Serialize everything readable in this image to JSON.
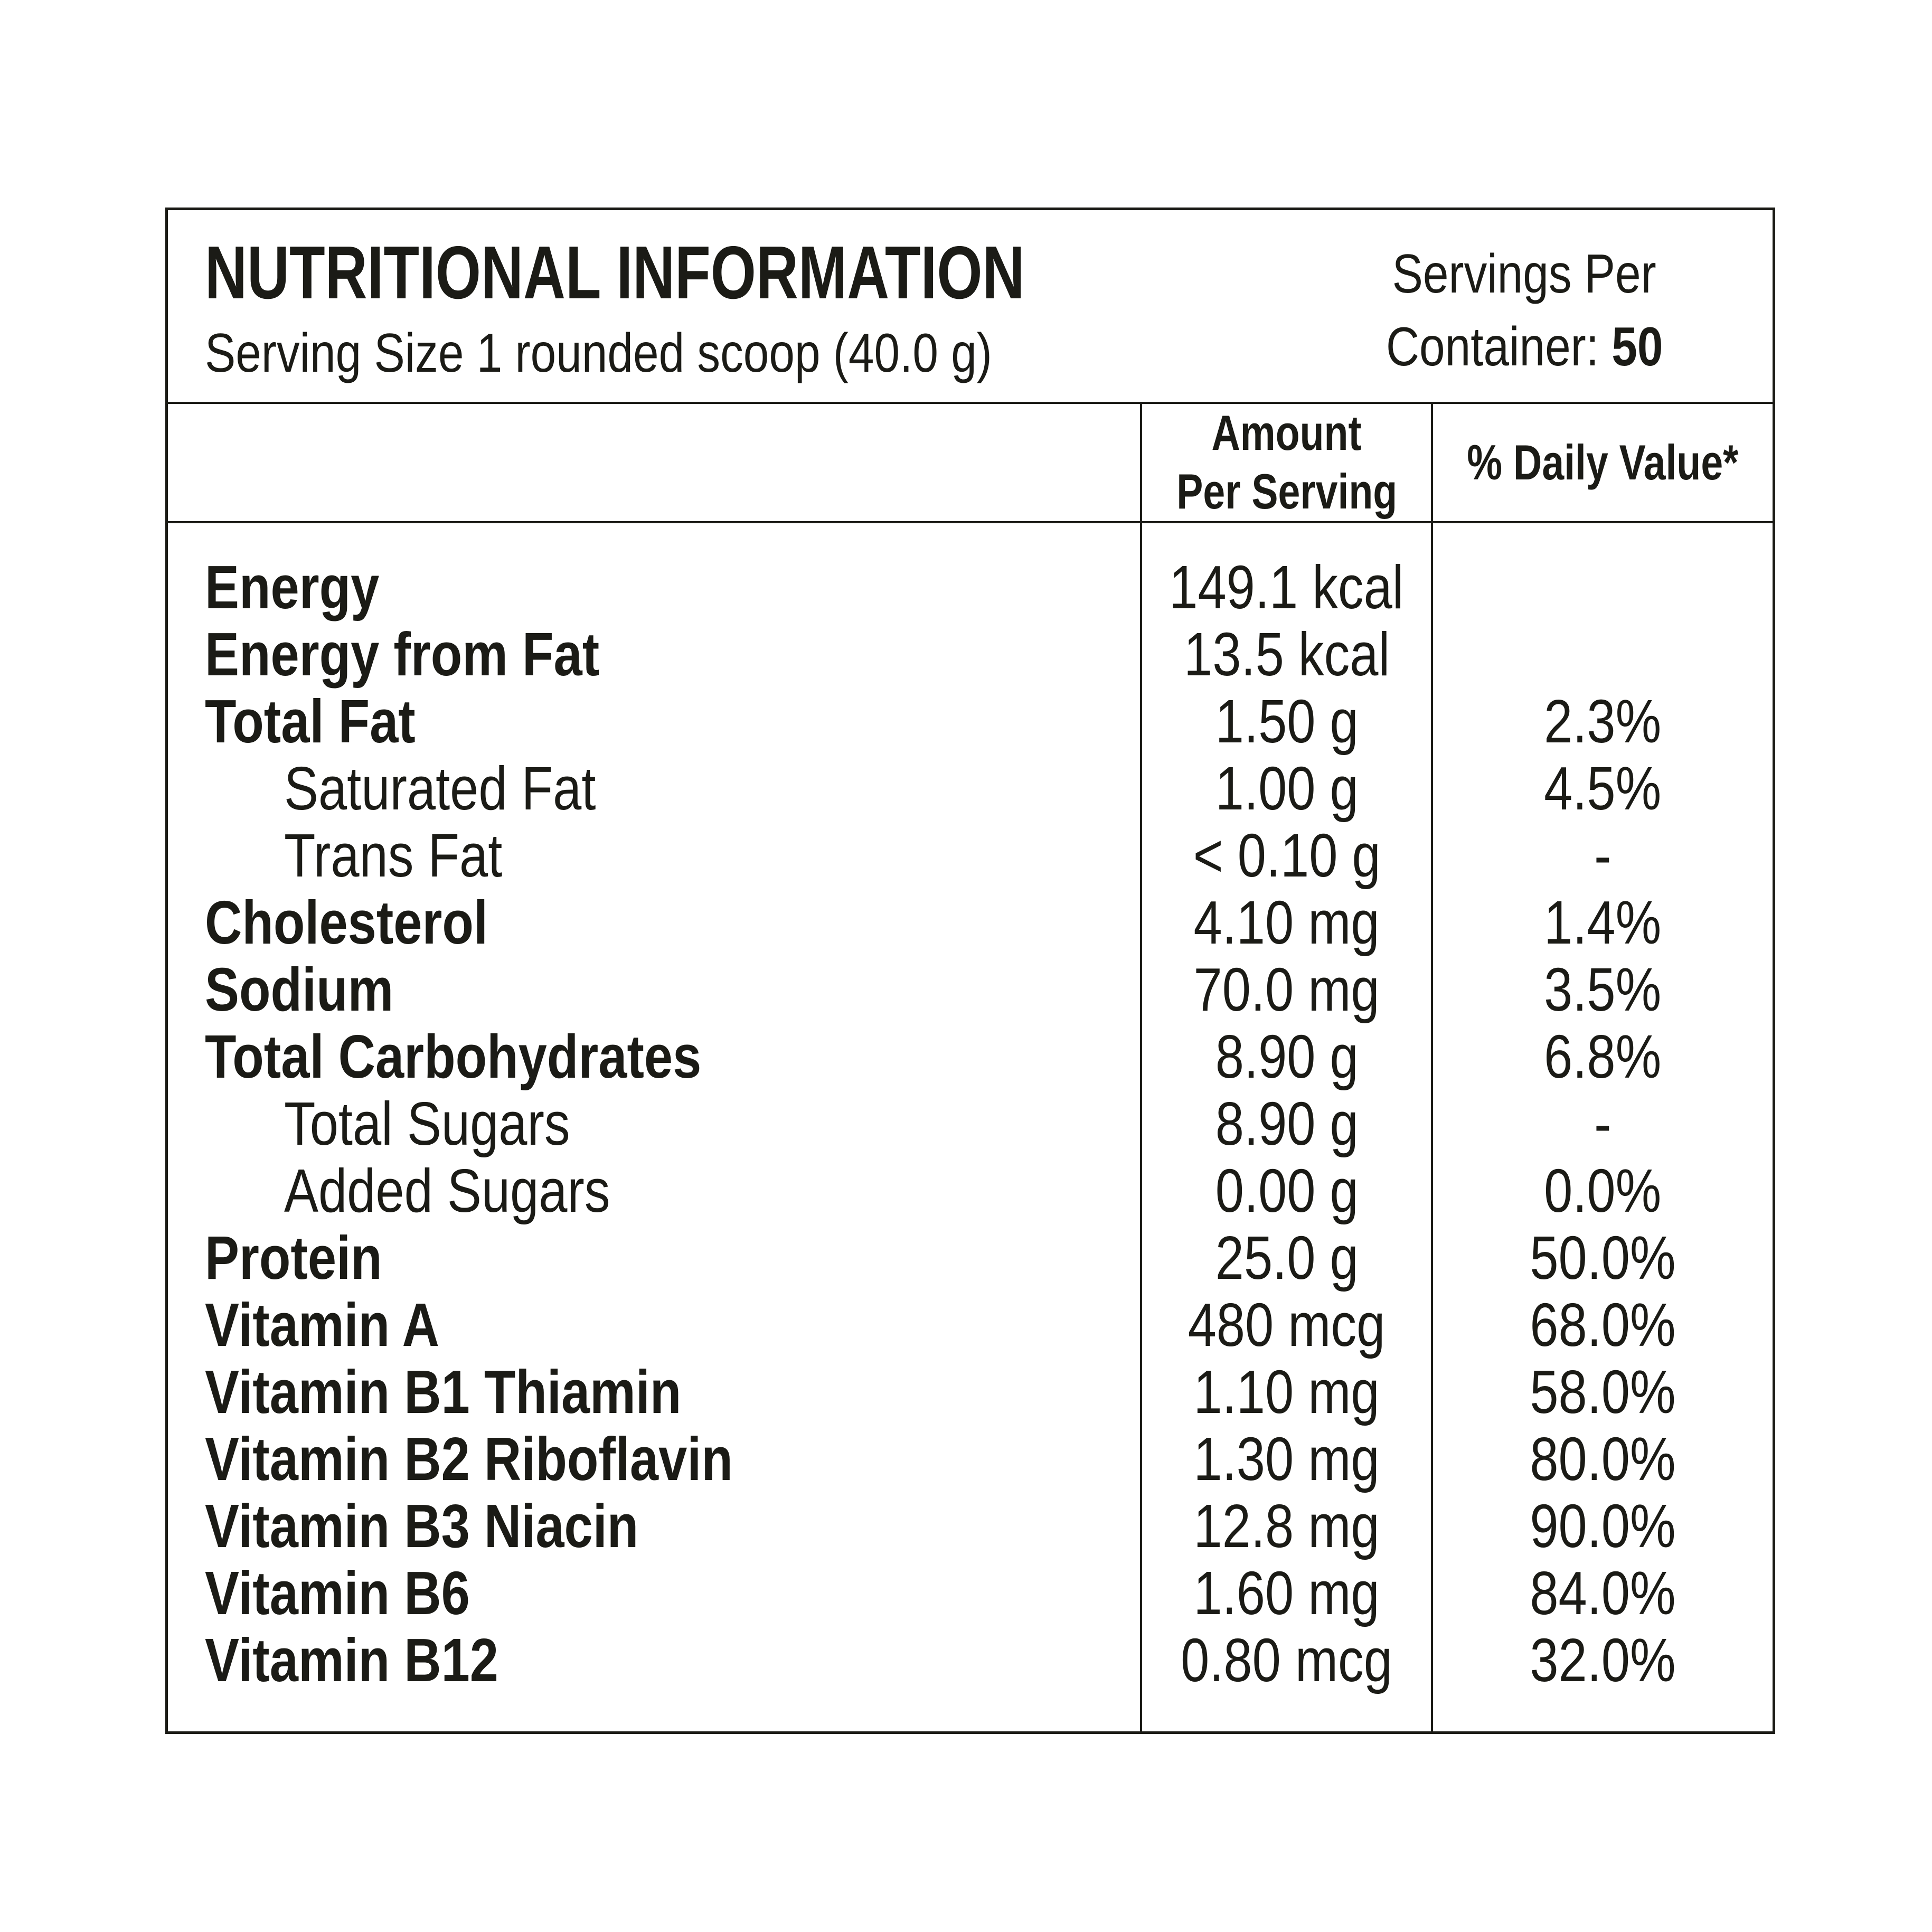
{
  "header": {
    "title": "NUTRITIONAL INFORMATION",
    "serving_size": "Serving Size 1 rounded scoop (40.0 g)",
    "servings_line1": "Servings Per",
    "servings_line2_label": "Container: ",
    "servings_line2_value": "50"
  },
  "columns": {
    "amount_line1": "Amount",
    "amount_line2": "Per Serving",
    "daily_value": "% Daily Value*"
  },
  "table": {
    "rows": [
      {
        "name": "Energy",
        "amount": "149.1 kcal",
        "daily_value": "",
        "bold": true,
        "indent": false
      },
      {
        "name": "Energy from Fat",
        "amount": "13.5 kcal",
        "daily_value": "",
        "bold": true,
        "indent": false
      },
      {
        "name": "Total Fat",
        "amount": "1.50 g",
        "daily_value": "2.3%",
        "bold": true,
        "indent": false
      },
      {
        "name": "Saturated Fat",
        "amount": "1.00 g",
        "daily_value": "4.5%",
        "bold": false,
        "indent": true
      },
      {
        "name": "Trans Fat",
        "amount": "< 0.10 g",
        "daily_value": "-",
        "bold": false,
        "indent": true
      },
      {
        "name": "Cholesterol",
        "amount": "4.10 mg",
        "daily_value": "1.4%",
        "bold": true,
        "indent": false
      },
      {
        "name": "Sodium",
        "amount": "70.0 mg",
        "daily_value": "3.5%",
        "bold": true,
        "indent": false
      },
      {
        "name": "Total Carbohydrates",
        "amount": "8.90 g",
        "daily_value": "6.8%",
        "bold": true,
        "indent": false
      },
      {
        "name": "Total Sugars",
        "amount": "8.90 g",
        "daily_value": "-",
        "bold": false,
        "indent": true
      },
      {
        "name": "Added Sugars",
        "amount": "0.00 g",
        "daily_value": "0.0%",
        "bold": false,
        "indent": true
      },
      {
        "name": "Protein",
        "amount": "25.0 g",
        "daily_value": "50.0%",
        "bold": true,
        "indent": false
      },
      {
        "name": "Vitamin A",
        "amount": "480 mcg",
        "daily_value": "68.0%",
        "bold": true,
        "indent": false
      },
      {
        "name": "Vitamin B1 Thiamin",
        "amount": "1.10 mg",
        "daily_value": "58.0%",
        "bold": true,
        "indent": false
      },
      {
        "name": "Vitamin B2 Riboflavin",
        "amount": "1.30 mg",
        "daily_value": "80.0%",
        "bold": true,
        "indent": false
      },
      {
        "name": "Vitamin B3 Niacin",
        "amount": "12.8 mg",
        "daily_value": "90.0%",
        "bold": true,
        "indent": false
      },
      {
        "name": "Vitamin B6",
        "amount": "1.60 mg",
        "daily_value": "84.0%",
        "bold": true,
        "indent": false
      },
      {
        "name": "Vitamin B12",
        "amount": "0.80 mcg",
        "daily_value": "32.0%",
        "bold": true,
        "indent": false
      }
    ]
  },
  "colors": {
    "text": "#1b1b16",
    "border": "#1b1b16",
    "background": "#ffffff"
  }
}
